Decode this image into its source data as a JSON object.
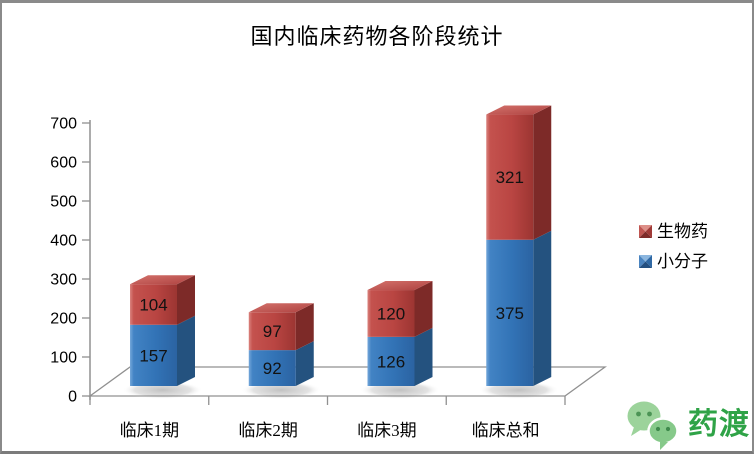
{
  "title": "国内临床药物各阶段统计",
  "chart_data": {
    "type": "bar",
    "subtype": "3d-stacked-column",
    "title": "国内临床药物各阶段统计",
    "categories": [
      "临床1期",
      "临床2期",
      "临床3期",
      "临床总和"
    ],
    "series": [
      {
        "name": "小分子",
        "color": "#3273B6",
        "values": [
          157,
          92,
          126,
          375
        ]
      },
      {
        "name": "生物药",
        "color": "#B94542",
        "values": [
          104,
          97,
          120,
          321
        ]
      }
    ],
    "ylim": [
      0,
      700
    ],
    "ytick_step": 100,
    "grid": false,
    "data_labels": true,
    "legend_position": "right"
  },
  "legend": {
    "items": [
      {
        "label": "生物药",
        "color": "#B94542"
      },
      {
        "label": "小分子",
        "color": "#3273B6"
      }
    ]
  },
  "watermark": {
    "brand": "药渡",
    "icon": "wechat-icon",
    "color": "#2fa347"
  }
}
